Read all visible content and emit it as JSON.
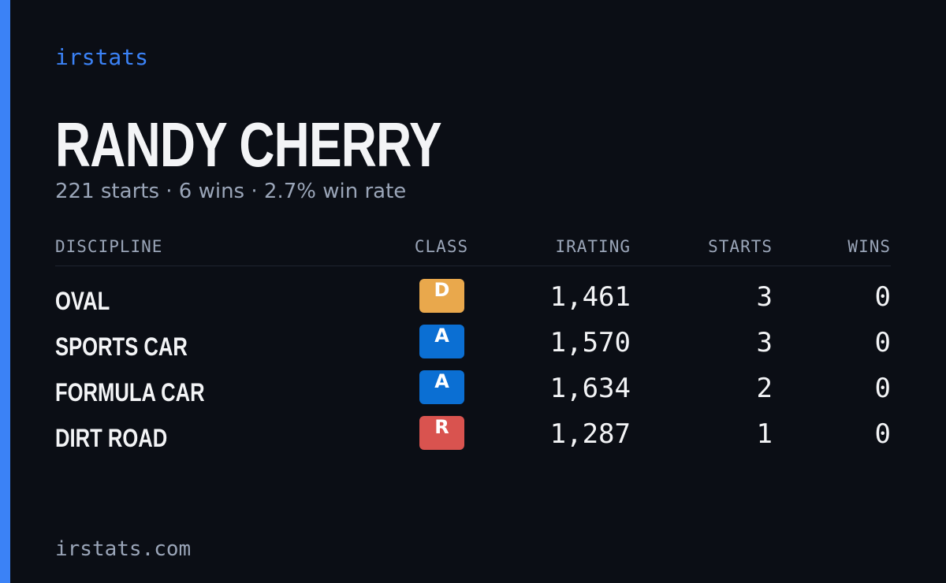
{
  "header": {
    "brand": "irstats",
    "name": "RANDY CHERRY",
    "summary": "221 starts · 6 wins · 2.7% win rate"
  },
  "table": {
    "columns": [
      "DISCIPLINE",
      "CLASS",
      "IRATING",
      "STARTS",
      "WINS"
    ],
    "rows": [
      {
        "discipline": "OVAL",
        "class": "D",
        "class_color": "#e9a84c",
        "irating": "1,461",
        "starts": "3",
        "wins": "0"
      },
      {
        "discipline": "SPORTS CAR",
        "class": "A",
        "class_color": "#0b6fd3",
        "irating": "1,570",
        "starts": "3",
        "wins": "0"
      },
      {
        "discipline": "FORMULA CAR",
        "class": "A",
        "class_color": "#0b6fd3",
        "irating": "1,634",
        "starts": "2",
        "wins": "0"
      },
      {
        "discipline": "DIRT ROAD",
        "class": "R",
        "class_color": "#d9534f",
        "irating": "1,287",
        "starts": "1",
        "wins": "0"
      }
    ]
  },
  "footer": {
    "site": "irstats.com"
  }
}
